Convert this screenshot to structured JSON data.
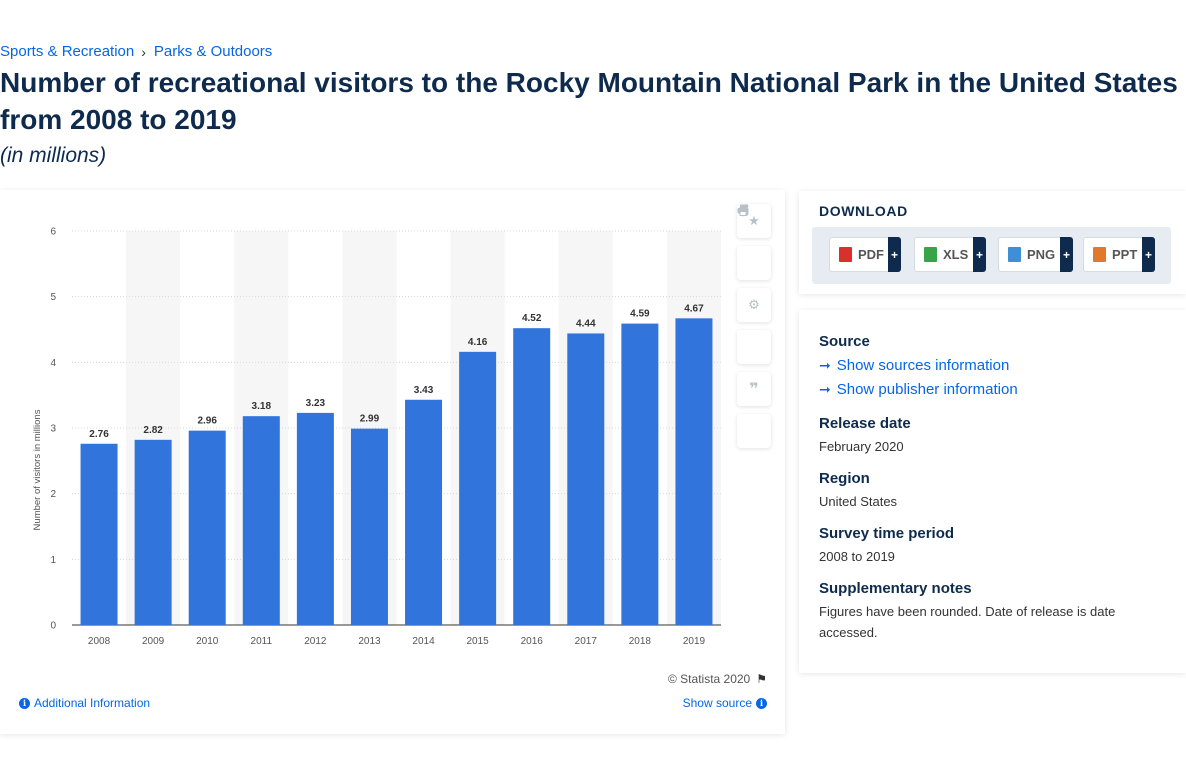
{
  "breadcrumb": {
    "items": [
      "Sports & Recreation",
      "Parks & Outdoors"
    ],
    "separator": "›"
  },
  "title": "Number of recreational visitors to the Rocky Mountain National Park in the United States from 2008 to 2019",
  "unit": "(in millions)",
  "chart_data": {
    "type": "bar",
    "categories": [
      "2008",
      "2009",
      "2010",
      "2011",
      "2012",
      "2013",
      "2014",
      "2015",
      "2016",
      "2017",
      "2018",
      "2019"
    ],
    "values": [
      2.76,
      2.82,
      2.96,
      3.18,
      3.23,
      2.99,
      3.43,
      4.16,
      4.52,
      4.44,
      4.59,
      4.67
    ],
    "value_labels": [
      "2.76",
      "2.82",
      "2.96",
      "3.18",
      "3.23",
      "2.99",
      "3.43",
      "4.16",
      "4.52",
      "4.44",
      "4.59",
      "4.67"
    ],
    "ylabel": "Number of visitors in millions",
    "xlabel": "",
    "ylim": [
      0,
      6
    ],
    "yticks": [
      "0",
      "1",
      "2",
      "3",
      "4",
      "5",
      "6"
    ],
    "grid": true,
    "bar_color": "#3174dc",
    "alt_column_color": "#f6f6f6"
  },
  "toolbar": {
    "icons": [
      "star-icon",
      "bell-icon",
      "gear-icon",
      "share-icon",
      "quote-icon",
      "print-icon"
    ]
  },
  "chart_footer": {
    "copyright": "© Statista 2020",
    "additional_info": "Additional Information",
    "show_source": "Show source"
  },
  "download": {
    "title": "DOWNLOAD",
    "buttons": [
      {
        "label": "PDF",
        "color": "#d9302c"
      },
      {
        "label": "XLS",
        "color": "#3aa34a"
      },
      {
        "label": "PNG",
        "color": "#3f8ed8"
      },
      {
        "label": "PPT",
        "color": "#e0782e"
      }
    ],
    "plus": "+"
  },
  "details": {
    "source_label": "Source",
    "show_sources": "Show sources information",
    "show_publisher": "Show publisher information",
    "release_label": "Release date",
    "release_value": "February 2020",
    "region_label": "Region",
    "region_value": "United States",
    "survey_label": "Survey time period",
    "survey_value": "2008 to 2019",
    "notes_label": "Supplementary notes",
    "notes_value": "Figures have been rounded. Date of release is date accessed."
  }
}
